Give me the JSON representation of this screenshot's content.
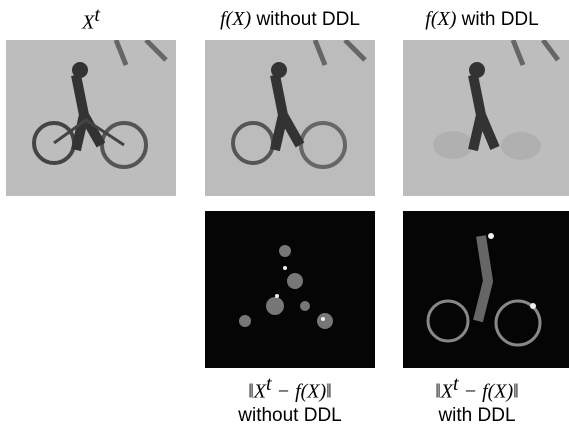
{
  "columns": [
    {
      "title": {
        "math": "X",
        "sup": "t"
      }
    },
    {
      "title": {
        "math": "f(X)",
        "text": "without DDL"
      }
    },
    {
      "title": {
        "math": "f(X)",
        "text": "with DDL"
      }
    }
  ],
  "captions": [
    {
      "math_before": "‖X",
      "sup": "t",
      "math_after": " − f(X)‖",
      "text": "without DDL"
    },
    {
      "math_before": "‖X",
      "sup": "t",
      "math_after": " − f(X)‖",
      "text": "with DDL"
    }
  ]
}
